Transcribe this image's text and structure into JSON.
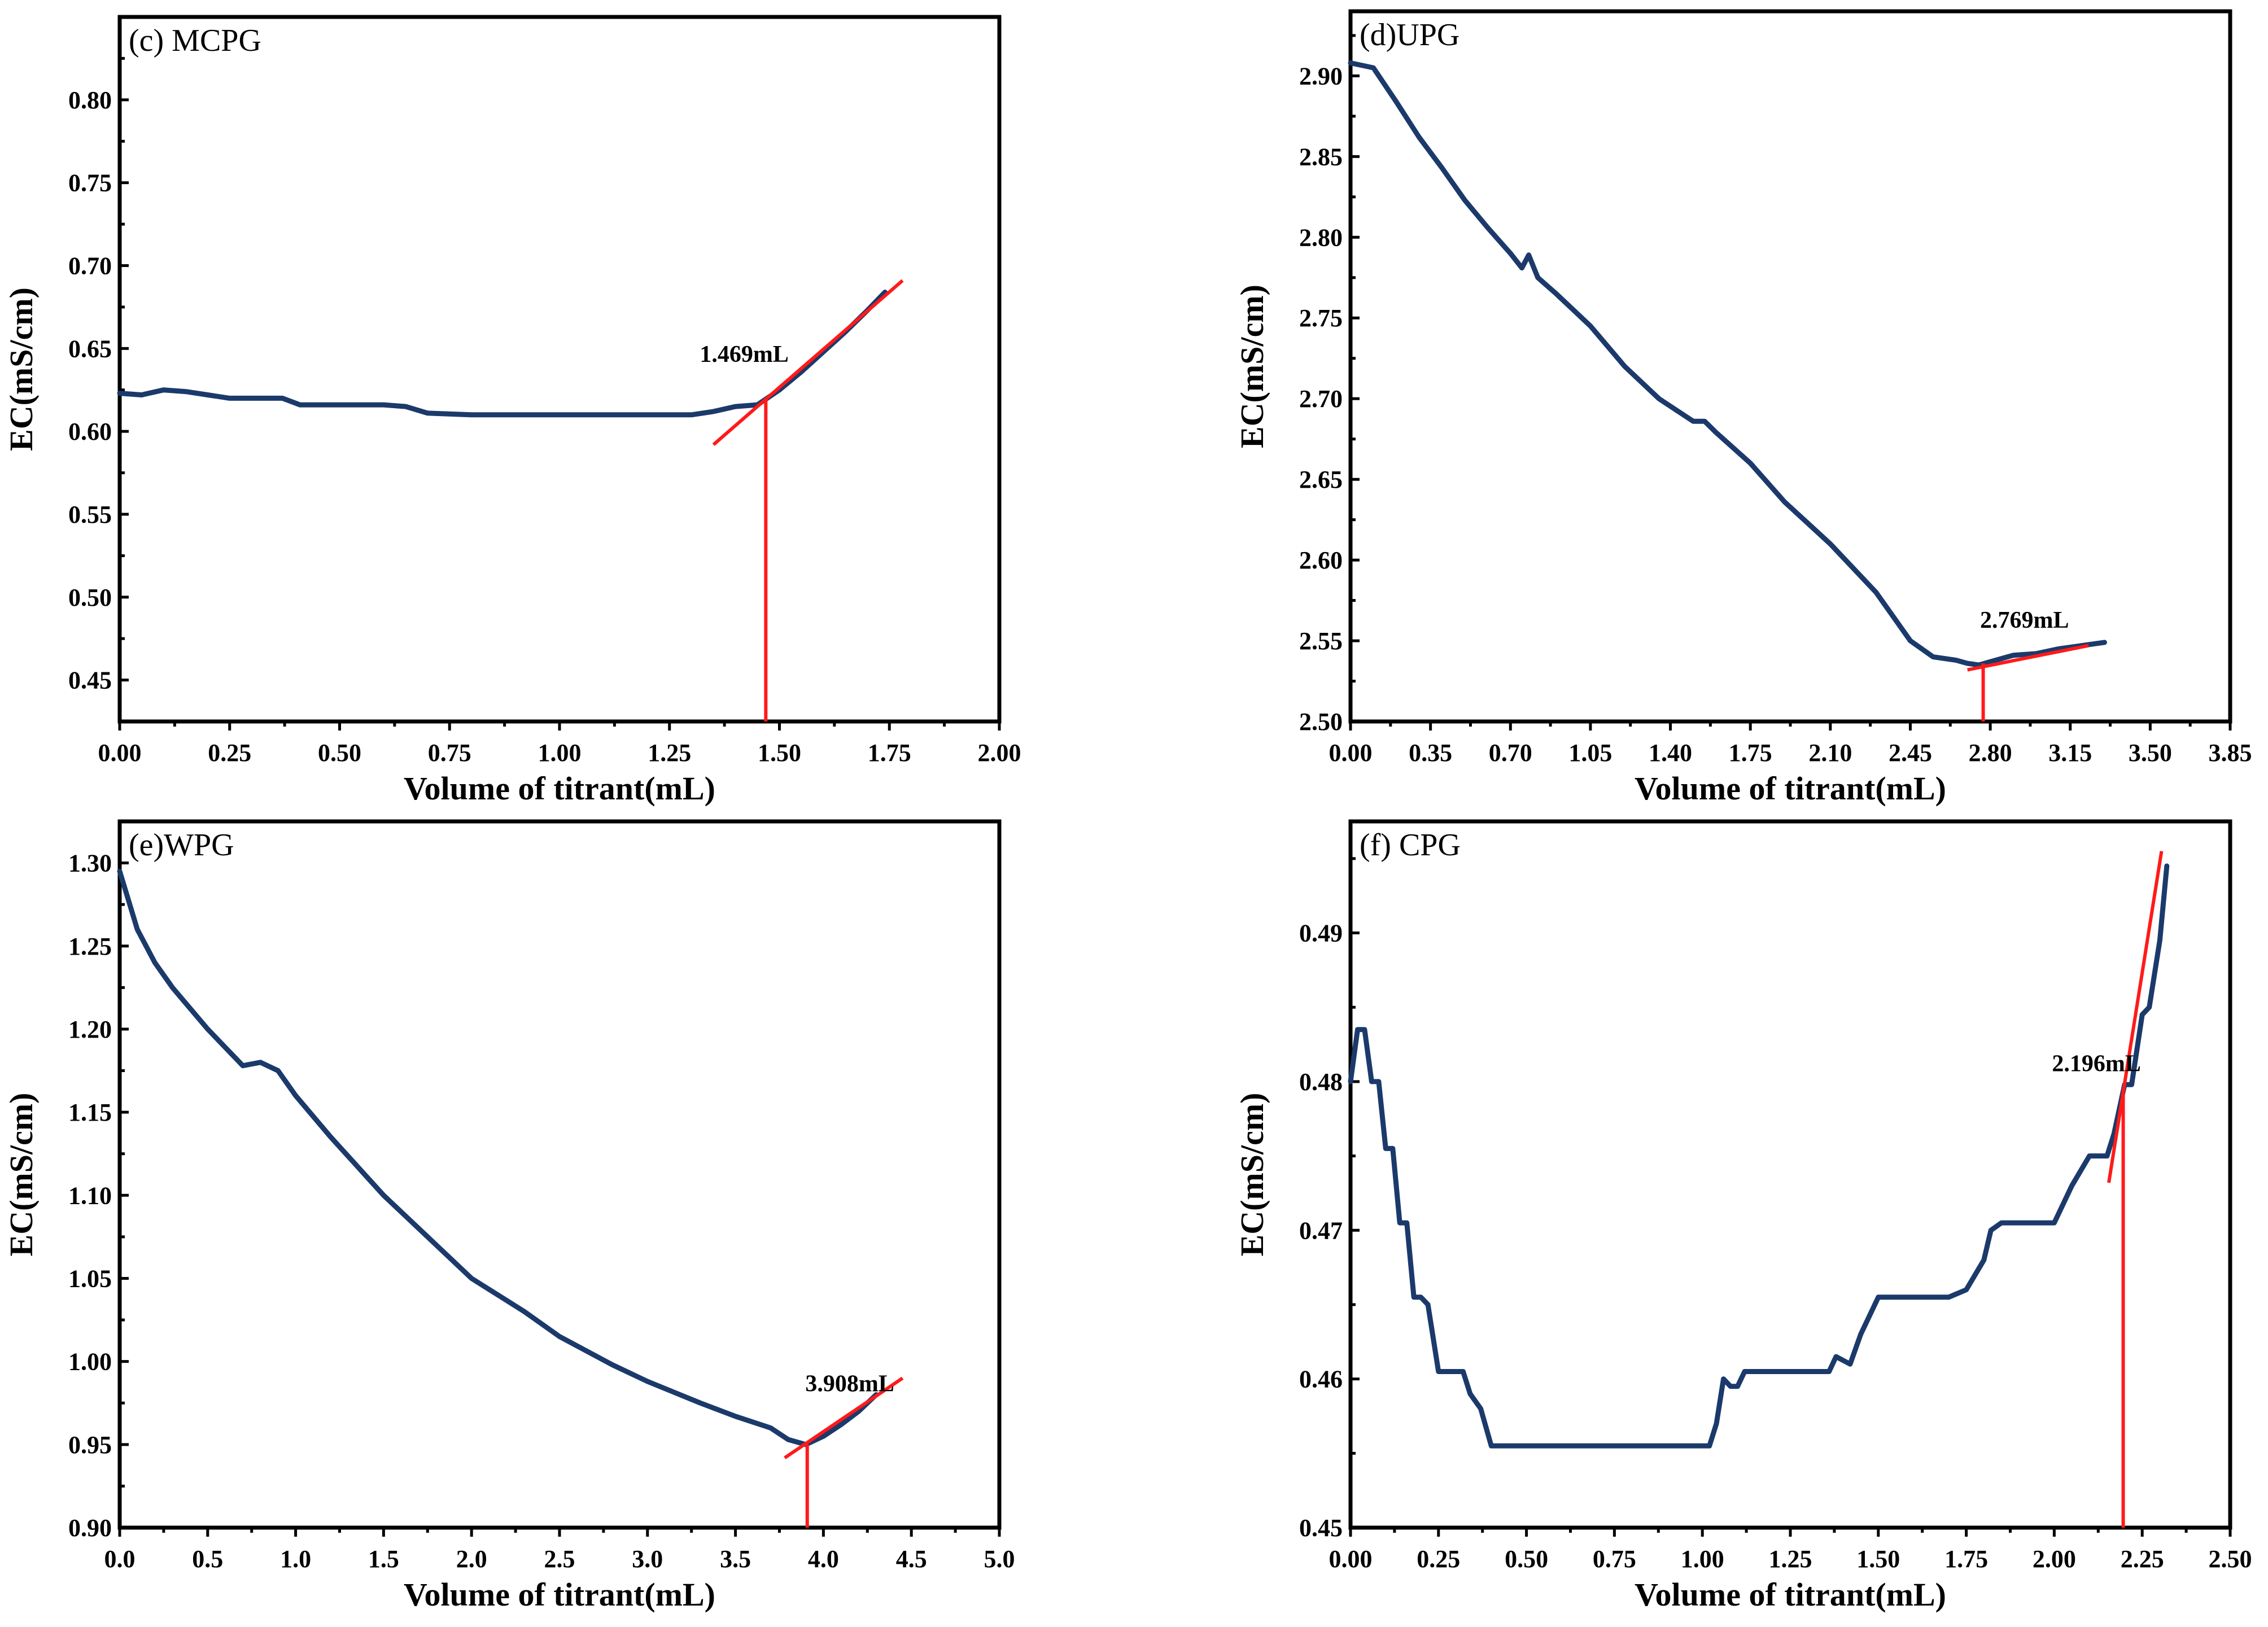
{
  "colors": {
    "series": "#1b3a6b",
    "fit": "#ff1a1a",
    "axis": "#000000",
    "background": "#ffffff"
  },
  "chart_data": [
    {
      "type": "line",
      "title": "(c) MCPG",
      "xlabel": "Volume of titrant(mL)",
      "ylabel": "EC(mS/cm)",
      "xlim": [
        0,
        2.0
      ],
      "ylim": [
        0.425,
        0.85
      ],
      "xticks": [
        0.0,
        0.25,
        0.5,
        0.75,
        1.0,
        1.25,
        1.5,
        1.75,
        2.0
      ],
      "xtick_labels": [
        "0.00",
        "0.25",
        "0.50",
        "0.75",
        "1.00",
        "1.25",
        "1.50",
        "1.75",
        "2.00"
      ],
      "yticks": [
        0.45,
        0.5,
        0.55,
        0.6,
        0.65,
        0.7,
        0.75,
        0.8
      ],
      "ytick_labels": [
        "0.45",
        "0.50",
        "0.55",
        "0.60",
        "0.65",
        "0.70",
        "0.75",
        "0.80"
      ],
      "series": [
        {
          "name": "MCPG",
          "x": [
            0.0,
            0.05,
            0.1,
            0.15,
            0.2,
            0.25,
            0.3,
            0.37,
            0.41,
            0.5,
            0.6,
            0.65,
            0.7,
            0.8,
            1.0,
            1.2,
            1.3,
            1.35,
            1.4,
            1.45,
            1.5,
            1.55,
            1.6,
            1.65,
            1.7,
            1.74
          ],
          "y": [
            0.623,
            0.622,
            0.625,
            0.624,
            0.622,
            0.62,
            0.62,
            0.62,
            0.616,
            0.616,
            0.616,
            0.615,
            0.611,
            0.61,
            0.61,
            0.61,
            0.61,
            0.612,
            0.615,
            0.616,
            0.625,
            0.636,
            0.648,
            0.66,
            0.673,
            0.684
          ]
        }
      ],
      "fit_lines": [
        {
          "x": [
            1.35,
            1.78
          ],
          "y": [
            0.592,
            0.691
          ]
        }
      ],
      "endpoint": {
        "x": 1.469,
        "y": 0.62,
        "y_base": 0.425,
        "label": "1.469mL",
        "label_x": 1.42,
        "label_y": 0.642
      }
    },
    {
      "type": "line",
      "title": "(d)UPG",
      "xlabel": "Volume of titrant(mL)",
      "ylabel": "EC(mS/cm)",
      "xlim": [
        0,
        3.85
      ],
      "ylim": [
        2.5,
        2.94
      ],
      "xticks": [
        0.0,
        0.35,
        0.7,
        1.05,
        1.4,
        1.75,
        2.1,
        2.45,
        2.8,
        3.15,
        3.5,
        3.85
      ],
      "xtick_labels": [
        "0.00",
        "0.35",
        "0.70",
        "1.05",
        "1.40",
        "1.75",
        "2.10",
        "2.45",
        "2.80",
        "3.15",
        "3.50",
        "3.85"
      ],
      "yticks": [
        2.5,
        2.55,
        2.6,
        2.65,
        2.7,
        2.75,
        2.8,
        2.85,
        2.9
      ],
      "ytick_labels": [
        "2.50",
        "2.55",
        "2.60",
        "2.65",
        "2.70",
        "2.75",
        "2.80",
        "2.85",
        "2.90"
      ],
      "series": [
        {
          "name": "UPG",
          "x": [
            0.0,
            0.1,
            0.2,
            0.3,
            0.4,
            0.5,
            0.6,
            0.7,
            0.75,
            0.78,
            0.82,
            0.9,
            1.05,
            1.2,
            1.35,
            1.5,
            1.55,
            1.6,
            1.75,
            1.9,
            2.1,
            2.3,
            2.45,
            2.55,
            2.65,
            2.7,
            2.75,
            2.8,
            2.9,
            3.0,
            3.1,
            3.2,
            3.3
          ],
          "y": [
            2.908,
            2.905,
            2.884,
            2.862,
            2.843,
            2.823,
            2.806,
            2.79,
            2.781,
            2.789,
            2.775,
            2.765,
            2.745,
            2.72,
            2.7,
            2.686,
            2.686,
            2.679,
            2.66,
            2.636,
            2.61,
            2.58,
            2.55,
            2.54,
            2.538,
            2.536,
            2.535,
            2.537,
            2.541,
            2.542,
            2.545,
            2.547,
            2.549
          ]
        }
      ],
      "fit_lines": [
        {
          "x": [
            2.7,
            3.23
          ],
          "y": [
            2.532,
            2.547
          ]
        }
      ],
      "endpoint": {
        "x": 2.769,
        "y": 2.536,
        "y_base": 2.5,
        "label": "2.769mL",
        "label_x": 2.95,
        "label_y": 2.558
      }
    },
    {
      "type": "line",
      "title": "(e)WPG",
      "xlabel": "Volume of titrant(mL)",
      "ylabel": "EC(mS/cm)",
      "xlim": [
        0,
        5.0
      ],
      "ylim": [
        0.9,
        1.325
      ],
      "xticks": [
        0.0,
        0.5,
        1.0,
        1.5,
        2.0,
        2.5,
        3.0,
        3.5,
        4.0,
        4.5,
        5.0
      ],
      "xtick_labels": [
        "0.0",
        "0.5",
        "1.0",
        "1.5",
        "2.0",
        "2.5",
        "3.0",
        "3.5",
        "4.0",
        "4.5",
        "5.0"
      ],
      "yticks": [
        0.9,
        0.95,
        1.0,
        1.05,
        1.1,
        1.15,
        1.2,
        1.25,
        1.3
      ],
      "ytick_labels": [
        "0.90",
        "0.95",
        "1.00",
        "1.05",
        "1.10",
        "1.15",
        "1.20",
        "1.25",
        "1.30"
      ],
      "series": [
        {
          "name": "WPG",
          "x": [
            0.0,
            0.1,
            0.2,
            0.3,
            0.5,
            0.7,
            0.8,
            0.9,
            1.0,
            1.2,
            1.5,
            1.8,
            2.0,
            2.3,
            2.5,
            2.8,
            3.0,
            3.3,
            3.5,
            3.7,
            3.8,
            3.9,
            4.0,
            4.1,
            4.2,
            4.3
          ],
          "y": [
            1.295,
            1.26,
            1.24,
            1.225,
            1.2,
            1.178,
            1.18,
            1.175,
            1.16,
            1.135,
            1.1,
            1.07,
            1.05,
            1.03,
            1.015,
            0.998,
            0.988,
            0.975,
            0.967,
            0.96,
            0.953,
            0.95,
            0.955,
            0.962,
            0.97,
            0.98
          ]
        }
      ],
      "fit_lines": [
        {
          "x": [
            3.78,
            4.45
          ],
          "y": [
            0.942,
            0.99
          ]
        }
      ],
      "endpoint": {
        "x": 3.908,
        "y": 0.95,
        "y_base": 0.9,
        "label": "3.908mL",
        "label_x": 4.15,
        "label_y": 0.982
      }
    },
    {
      "type": "line",
      "title": "(f) CPG",
      "xlabel": "Volume of titrant(mL)",
      "ylabel": "EC(mS/cm)",
      "xlim": [
        0,
        2.5
      ],
      "ylim": [
        0.45,
        0.4975
      ],
      "xticks": [
        0.0,
        0.25,
        0.5,
        0.75,
        1.0,
        1.25,
        1.5,
        1.75,
        2.0,
        2.25,
        2.5
      ],
      "xtick_labels": [
        "0.00",
        "0.25",
        "0.50",
        "0.75",
        "1.00",
        "1.25",
        "1.50",
        "1.75",
        "2.00",
        "2.25",
        "2.50"
      ],
      "yticks": [
        0.45,
        0.46,
        0.47,
        0.48,
        0.49
      ],
      "ytick_labels": [
        "0.45",
        "0.46",
        "0.47",
        "0.48",
        "0.49"
      ],
      "series": [
        {
          "name": "CPG",
          "x": [
            0.0,
            0.02,
            0.04,
            0.06,
            0.08,
            0.1,
            0.12,
            0.14,
            0.16,
            0.18,
            0.2,
            0.22,
            0.25,
            0.27,
            0.32,
            0.34,
            0.37,
            0.4,
            0.6,
            0.8,
            0.95,
            1.02,
            1.04,
            1.06,
            1.08,
            1.1,
            1.12,
            1.3,
            1.36,
            1.38,
            1.42,
            1.45,
            1.5,
            1.55,
            1.7,
            1.75,
            1.8,
            1.82,
            1.85,
            1.9,
            2.0,
            2.05,
            2.1,
            2.15,
            2.17,
            2.2,
            2.22,
            2.25,
            2.27,
            2.3,
            2.32
          ],
          "y": [
            0.48,
            0.4835,
            0.4835,
            0.48,
            0.48,
            0.4755,
            0.4755,
            0.4705,
            0.4705,
            0.4655,
            0.4655,
            0.465,
            0.4605,
            0.4605,
            0.4605,
            0.459,
            0.458,
            0.4555,
            0.4555,
            0.4555,
            0.4555,
            0.4555,
            0.457,
            0.46,
            0.4595,
            0.4595,
            0.4605,
            0.4605,
            0.4605,
            0.4615,
            0.461,
            0.463,
            0.4655,
            0.4655,
            0.4655,
            0.466,
            0.468,
            0.47,
            0.4705,
            0.4705,
            0.4705,
            0.473,
            0.475,
            0.475,
            0.4765,
            0.4798,
            0.4798,
            0.4845,
            0.485,
            0.4895,
            0.4945
          ]
        }
      ],
      "fit_lines": [
        {
          "x": [
            2.155,
            2.305
          ],
          "y": [
            0.4732,
            0.4955
          ]
        }
      ],
      "endpoint": {
        "x": 2.196,
        "y": 0.4795,
        "y_base": 0.45,
        "label": "2.196mL",
        "label_x": 2.12,
        "label_y": 0.4807
      }
    }
  ]
}
